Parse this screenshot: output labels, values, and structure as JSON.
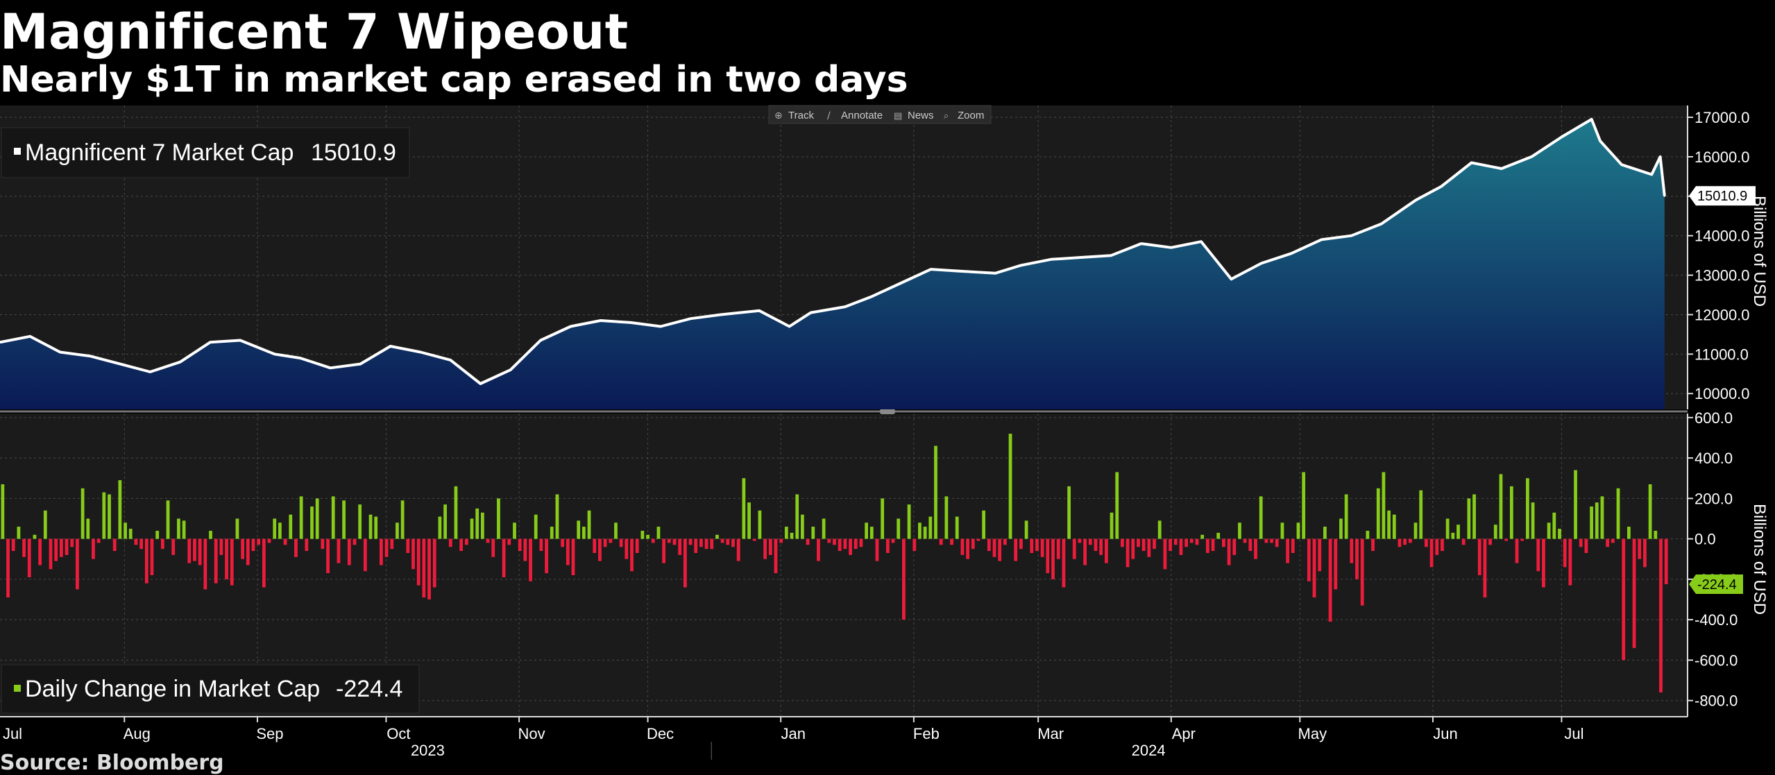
{
  "header": {
    "title": "Magnificent 7 Wipeout",
    "subtitle": "Nearly $1T in market cap erased in two days"
  },
  "toolbar": {
    "items": [
      {
        "label": "Track",
        "icon": "crosshair-icon"
      },
      {
        "label": "Annotate",
        "icon": "pencil-icon"
      },
      {
        "label": "News",
        "icon": "newspaper-icon"
      },
      {
        "label": "Zoom",
        "icon": "magnifier-icon"
      }
    ]
  },
  "source": "Source: Bloomberg",
  "colors": {
    "background": "#000000",
    "plot_bg": "#1b1b1b",
    "area_top": "#1e7a8c",
    "area_bottom": "#0a1a55",
    "line": "#ffffff",
    "positive": "#88cc1a",
    "negative": "#ee1c3c",
    "grid": "#555555"
  },
  "chart_data": [
    {
      "type": "area",
      "title": "",
      "legend": {
        "label": "Magnificent 7 Market Cap",
        "value": "15010.9",
        "placement": "top-left"
      },
      "last_value_label": "15010.9",
      "ylabel": "Billions of USD",
      "ylim": [
        9600,
        17300
      ],
      "yticks": [
        10000,
        11000,
        12000,
        13000,
        14000,
        15000,
        16000,
        17000
      ],
      "ytick_labels": [
        "10000.0",
        "11000.0",
        "12000.0",
        "13000.0",
        "14000.0",
        "15000.0",
        "16000.0",
        "17000.0"
      ],
      "x_start": "2023-07-03",
      "x_end": "2024-07-26",
      "x": [
        "2023-07-03",
        "2023-07-10",
        "2023-07-17",
        "2023-07-24",
        "2023-07-31",
        "2023-08-07",
        "2023-08-14",
        "2023-08-21",
        "2023-08-28",
        "2023-09-05",
        "2023-09-11",
        "2023-09-18",
        "2023-09-25",
        "2023-10-02",
        "2023-10-09",
        "2023-10-16",
        "2023-10-23",
        "2023-10-30",
        "2023-11-06",
        "2023-11-13",
        "2023-11-20",
        "2023-11-27",
        "2023-12-04",
        "2023-12-11",
        "2023-12-18",
        "2023-12-27",
        "2024-01-03",
        "2024-01-08",
        "2024-01-16",
        "2024-01-22",
        "2024-01-29",
        "2024-02-05",
        "2024-02-12",
        "2024-02-20",
        "2024-02-26",
        "2024-03-04",
        "2024-03-11",
        "2024-03-18",
        "2024-03-25",
        "2024-04-01",
        "2024-04-08",
        "2024-04-15",
        "2024-04-22",
        "2024-04-29",
        "2024-05-06",
        "2024-05-13",
        "2024-05-20",
        "2024-05-28",
        "2024-06-03",
        "2024-06-10",
        "2024-06-17",
        "2024-06-24",
        "2024-07-01",
        "2024-07-08",
        "2024-07-10",
        "2024-07-15",
        "2024-07-22",
        "2024-07-24",
        "2024-07-25"
      ],
      "values": [
        11300,
        11450,
        11050,
        10950,
        10750,
        10550,
        10800,
        11300,
        11350,
        11000,
        10900,
        10650,
        10750,
        11200,
        11050,
        10850,
        10250,
        10600,
        11350,
        11700,
        11850,
        11800,
        11700,
        11900,
        12000,
        12100,
        11700,
        12050,
        12200,
        12450,
        12800,
        13150,
        13100,
        13050,
        13250,
        13400,
        13450,
        13500,
        13800,
        13700,
        13850,
        12900,
        13300,
        13550,
        13900,
        14000,
        14300,
        14900,
        15250,
        15850,
        15700,
        16000,
        16500,
        16950,
        16400,
        15800,
        15550,
        16000,
        15010.9
      ]
    },
    {
      "type": "bar",
      "title": "",
      "legend": {
        "label": "Daily Change in Market Cap",
        "value": "-224.4",
        "placement": "bottom-left"
      },
      "last_value_label": "-224.4",
      "ylabel": "Billions of USD",
      "ylim": [
        -880,
        620
      ],
      "yticks": [
        -800,
        -600,
        -400,
        -200,
        0,
        200,
        400,
        600
      ],
      "ytick_labels": [
        "-800.0",
        "-600.0",
        "-400.0",
        "-200.0",
        "0.0",
        "200.0",
        "400.0",
        "600.0"
      ],
      "x_start": "2023-07-03",
      "x_end": "2024-07-26",
      "values": [
        270,
        -290,
        -60,
        60,
        -90,
        -190,
        20,
        -130,
        140,
        -150,
        -110,
        -90,
        -80,
        -40,
        -250,
        250,
        100,
        -100,
        -20,
        230,
        220,
        -60,
        290,
        80,
        50,
        -30,
        -50,
        -220,
        -180,
        40,
        -50,
        190,
        -80,
        100,
        90,
        -120,
        -110,
        -130,
        -250,
        40,
        -220,
        -80,
        -200,
        -230,
        100,
        -100,
        -130,
        -60,
        -30,
        -240,
        -20,
        100,
        80,
        -30,
        120,
        -90,
        210,
        -60,
        160,
        200,
        -50,
        -170,
        210,
        -120,
        190,
        -130,
        -30,
        170,
        -160,
        120,
        110,
        -130,
        -90,
        -50,
        80,
        190,
        -70,
        -150,
        -230,
        -290,
        -300,
        -240,
        110,
        170,
        -40,
        260,
        -60,
        -30,
        100,
        150,
        130,
        -20,
        -90,
        200,
        -190,
        -30,
        80,
        -60,
        -110,
        -210,
        120,
        -60,
        -170,
        60,
        220,
        -40,
        -130,
        -180,
        90,
        60,
        140,
        -70,
        -110,
        -40,
        -20,
        80,
        -40,
        -100,
        -160,
        -70,
        40,
        20,
        -20,
        60,
        -120,
        -20,
        -30,
        -80,
        -240,
        -30,
        -70,
        -40,
        -50,
        -50,
        20,
        -20,
        -30,
        -40,
        -110,
        300,
        180,
        -10,
        140,
        -100,
        -80,
        -170,
        -20,
        60,
        30,
        220,
        120,
        -30,
        60,
        -110,
        100,
        -20,
        -30,
        -60,
        -50,
        -80,
        -50,
        -40,
        80,
        60,
        -110,
        200,
        -70,
        -20,
        100,
        -400,
        170,
        -60,
        80,
        60,
        110,
        460,
        -30,
        210,
        -30,
        110,
        -80,
        -100,
        -50,
        -10,
        140,
        -60,
        -90,
        -110,
        -30,
        520,
        -110,
        -50,
        90,
        -70,
        -60,
        -90,
        -170,
        -200,
        -100,
        -240,
        260,
        -100,
        -20,
        -130,
        -30,
        -60,
        -80,
        -120,
        130,
        330,
        -40,
        -140,
        -100,
        -40,
        -60,
        -90,
        -50,
        90,
        -150,
        -60,
        -30,
        -80,
        -40,
        -20,
        -30,
        20,
        -70,
        -60,
        30,
        -40,
        -130,
        -80,
        80,
        -20,
        -60,
        -100,
        210,
        -20,
        -20,
        -40,
        80,
        -120,
        -70,
        80,
        330,
        -210,
        -290,
        -160,
        60,
        -410,
        -250,
        100,
        220,
        -120,
        -200,
        -330,
        40,
        -60,
        250,
        330,
        140,
        120,
        -40,
        -30,
        -20,
        80,
        240,
        -40,
        -140,
        -80,
        -60,
        100,
        30,
        70,
        -30,
        200,
        220,
        -180,
        -290,
        -30,
        70,
        320,
        -10,
        260,
        -120,
        -10,
        300,
        180,
        -160,
        -240,
        80,
        130,
        50,
        -140,
        -230,
        340,
        -40,
        -70,
        160,
        180,
        210,
        -40,
        -20,
        250,
        -600,
        60,
        -540,
        -100,
        -140,
        270,
        40,
        -760,
        -224.4
      ]
    }
  ],
  "x_axis": {
    "month_labels": [
      "Jul",
      "Aug",
      "Sep",
      "Oct",
      "Nov",
      "Dec",
      "Jan",
      "Feb",
      "Mar",
      "Apr",
      "May",
      "Jun",
      "Jul"
    ],
    "year_labels": [
      "2023",
      "2024"
    ]
  }
}
